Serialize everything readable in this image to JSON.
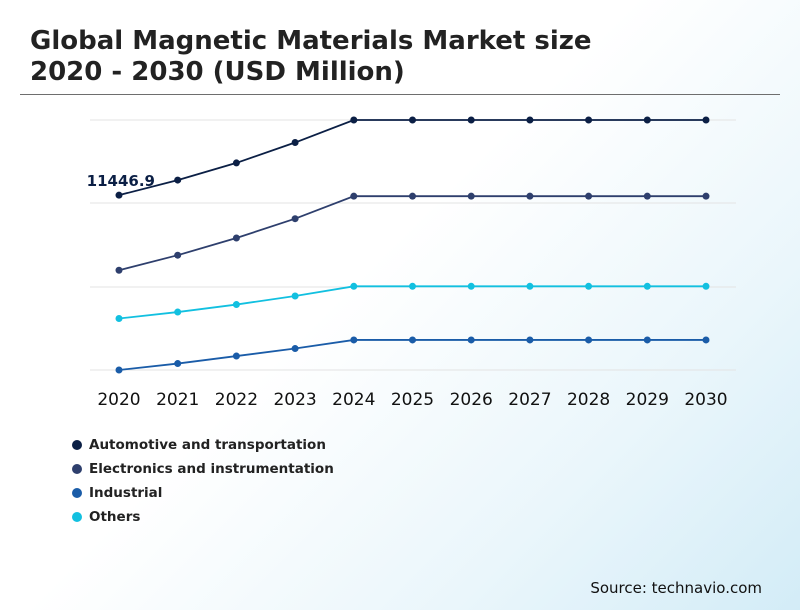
{
  "title_line1": "Global Magnetic Materials Market size",
  "title_line2": "2020 - 2030 (USD Million)",
  "source": "Source: technavio.com",
  "chart_data": {
    "type": "line",
    "x": [
      "2020",
      "2021",
      "2022",
      "2023",
      "2024",
      "2025",
      "2026",
      "2027",
      "2028",
      "2029",
      "2030"
    ],
    "series": [
      {
        "name": "Automotive and transportation",
        "color": "#0b1f45",
        "values": [
          11446.9,
          12150,
          12950,
          13900,
          14950,
          14950,
          14950,
          14950,
          14950,
          14950,
          14950
        ]
      },
      {
        "name": "Electronics and instrumentation",
        "color": "#2e3f6d",
        "values": [
          7950,
          8650,
          9450,
          10350,
          11400,
          11400,
          11400,
          11400,
          11400,
          11400,
          11400
        ]
      },
      {
        "name": "Industrial",
        "color": "#1a5ca8",
        "values": [
          3300,
          3600,
          3950,
          4300,
          4700,
          4700,
          4700,
          4700,
          4700,
          4700,
          4700
        ]
      },
      {
        "name": "Others",
        "color": "#12c0e0",
        "values": [
          5700,
          6000,
          6350,
          6750,
          7200,
          7200,
          7200,
          7200,
          7200,
          7200,
          7200
        ]
      }
    ],
    "data_labels": [
      {
        "series": "Automotive and transportation",
        "x": "2020",
        "text": "11446.9"
      }
    ],
    "ylim": [
      3300,
      14950
    ],
    "grid": true,
    "legend": "bottom-left"
  }
}
